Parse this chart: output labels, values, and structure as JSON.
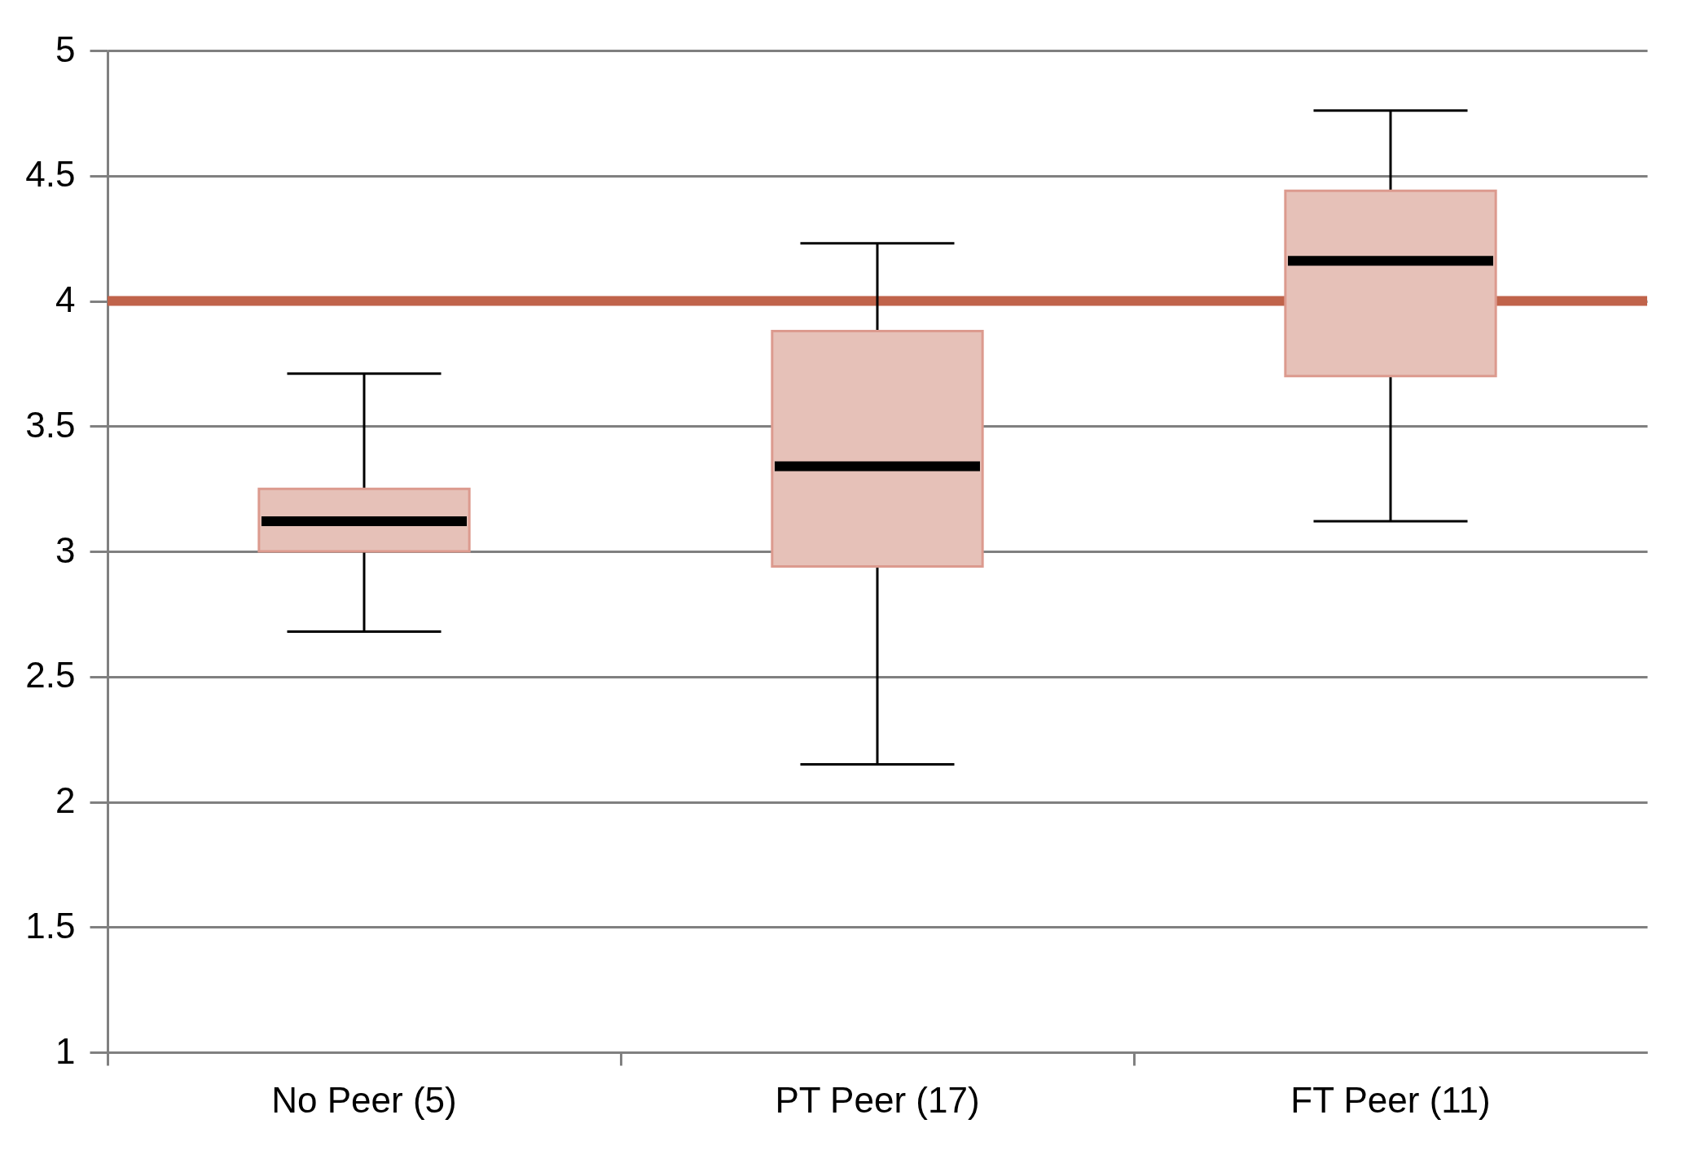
{
  "chart_data": {
    "type": "box",
    "categories": [
      "No Peer (5)",
      "PT Peer (17)",
      "FT Peer (11)"
    ],
    "series": [
      {
        "color": "#e6c1b8",
        "boxes": [
          {
            "low": 2.68,
            "q1": 3.0,
            "median": 3.12,
            "q3": 3.25,
            "high": 3.71
          },
          {
            "low": 2.15,
            "q1": 2.94,
            "median": 3.34,
            "q3": 3.88,
            "high": 4.23
          },
          {
            "low": 3.12,
            "q1": 3.7,
            "median": 4.16,
            "q3": 4.44,
            "high": 4.76
          }
        ]
      }
    ],
    "ylim": [
      1,
      5
    ],
    "yticks": [
      1,
      1.5,
      2,
      2.5,
      3,
      3.5,
      4,
      4.5,
      5
    ],
    "grid": "y",
    "ref_lines": [
      {
        "axis": "y",
        "value": 4,
        "color": "#c0634a"
      }
    ]
  }
}
